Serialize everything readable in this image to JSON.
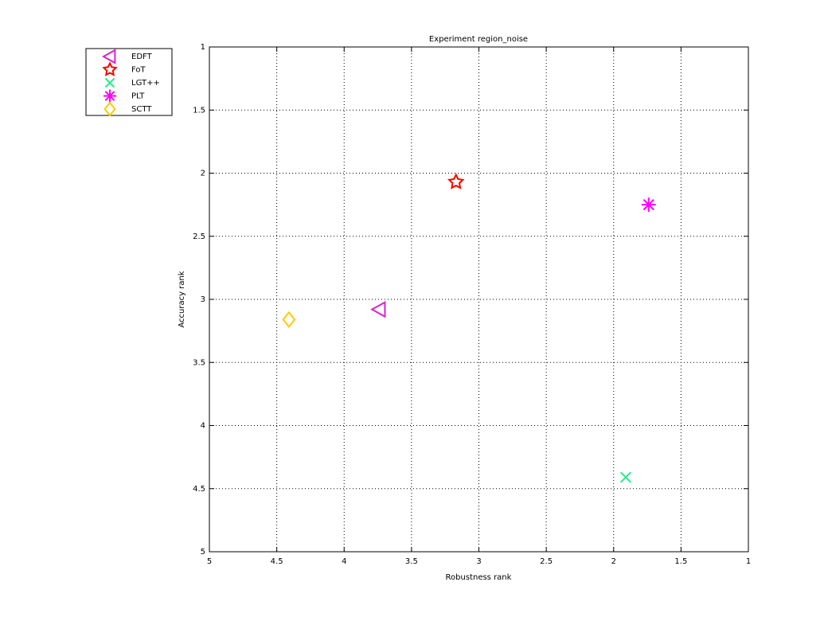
{
  "chart_data": {
    "type": "scatter",
    "title": "Experiment region_noise",
    "x_label": "Robustness rank",
    "y_label": "Accuracy rank",
    "xlim": [
      5,
      1
    ],
    "ylim": [
      1,
      5
    ],
    "xticks": [
      5,
      4.5,
      4,
      3.5,
      3,
      2.5,
      2,
      1.5,
      1
    ],
    "yticks": [
      1,
      1.5,
      2,
      2.5,
      3,
      3.5,
      4,
      4.5,
      5
    ],
    "grid": true,
    "legend": "outside-top-left",
    "series": [
      {
        "name": "EDFT",
        "color": "#dd22cc",
        "marker": "triangle-left",
        "x": [
          3.74
        ],
        "y": [
          3.08
        ]
      },
      {
        "name": "FoT",
        "color": "#ff0000",
        "marker": "hexagram",
        "x": [
          3.17
        ],
        "y": [
          2.07
        ]
      },
      {
        "name": "LGT++",
        "color": "#22ee88",
        "marker": "x",
        "x": [
          1.91
        ],
        "y": [
          4.41
        ]
      },
      {
        "name": "PLT",
        "color": "#ff00ff",
        "marker": "asterisk",
        "x": [
          1.74
        ],
        "y": [
          2.25
        ]
      },
      {
        "name": "SCTT",
        "color": "#ffcc00",
        "marker": "diamond",
        "x": [
          4.41
        ],
        "y": [
          3.16
        ]
      }
    ]
  }
}
